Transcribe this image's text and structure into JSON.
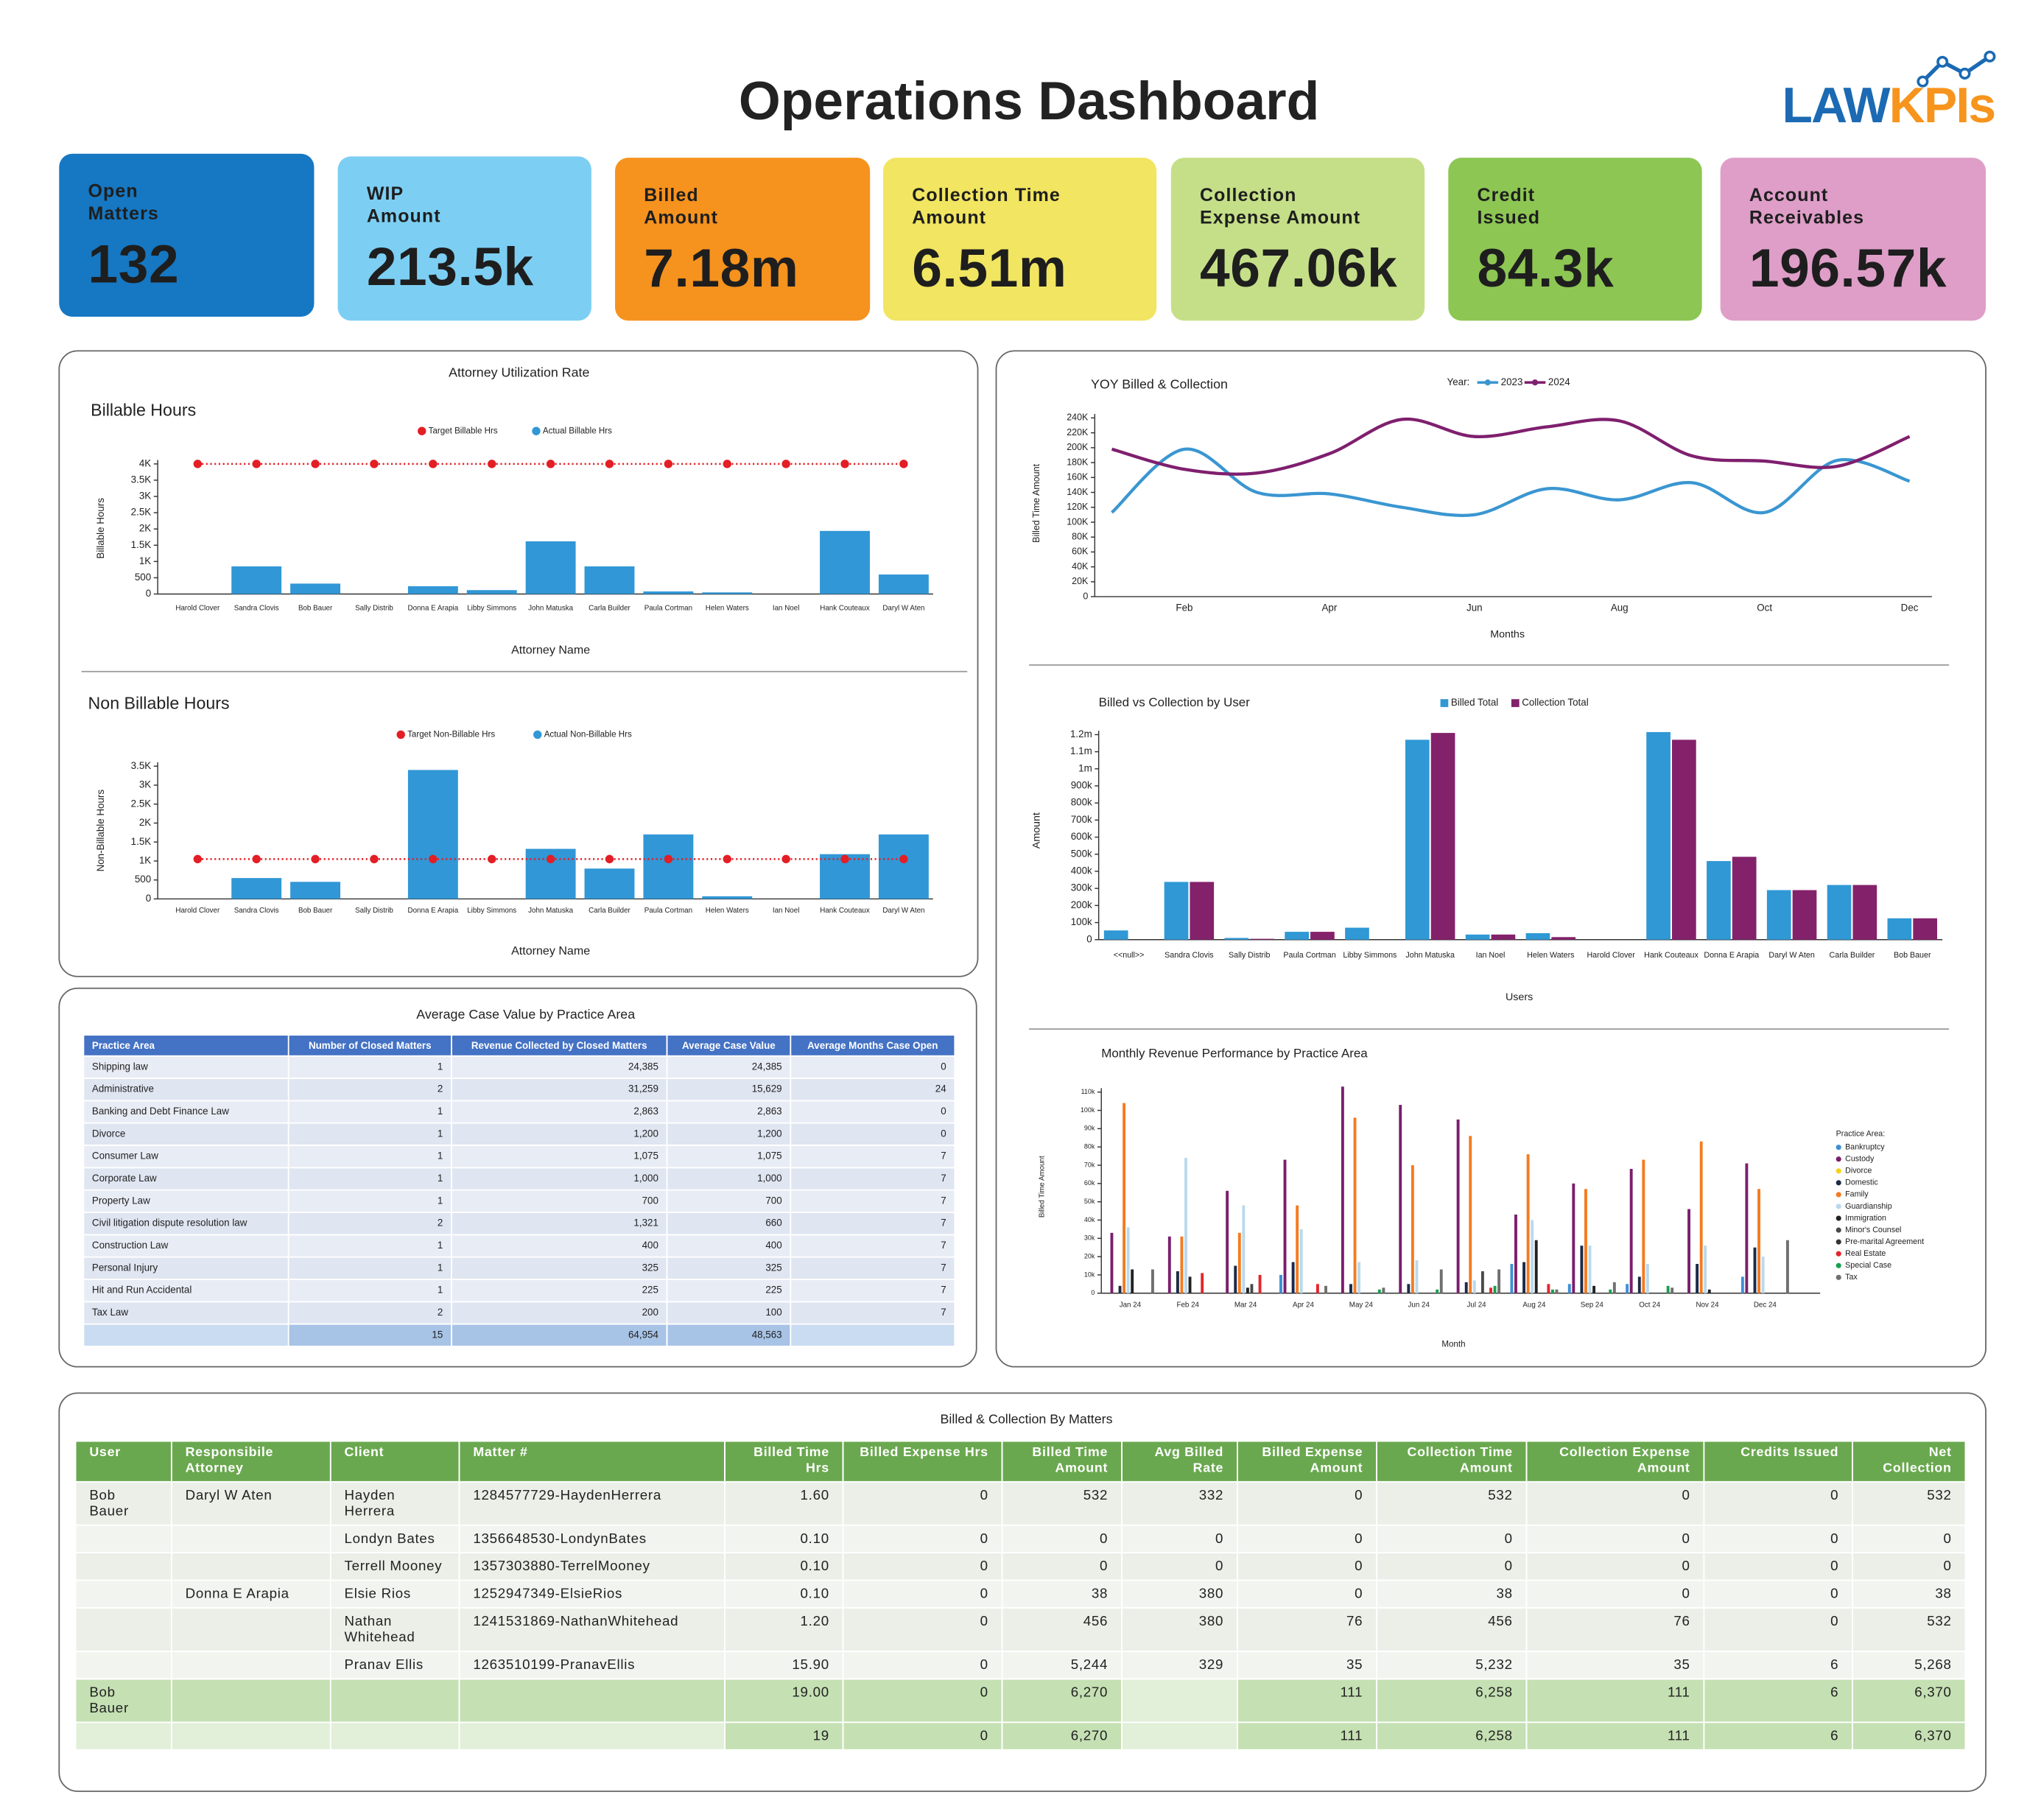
{
  "header": {
    "title": "Operations Dashboard",
    "logo": [
      "LAW",
      "KPIs"
    ]
  },
  "kpis": [
    {
      "label": [
        "Open",
        "Matters"
      ],
      "value": "132",
      "color": "#1677c2"
    },
    {
      "label": [
        "WIP",
        "Amount"
      ],
      "value": "213.5k",
      "color": "#7ccff3"
    },
    {
      "label": [
        "Billed",
        "Amount"
      ],
      "value": "7.18m",
      "color": "#f6921e"
    },
    {
      "label": [
        "Collection Time",
        "Amount"
      ],
      "value": "6.51m",
      "color": "#f1e561"
    },
    {
      "label": [
        "Collection",
        "Expense Amount"
      ],
      "value": "467.06k",
      "color": "#c5df88"
    },
    {
      "label": [
        "Credit",
        "Issued"
      ],
      "value": "84.3k",
      "color": "#8dc653"
    },
    {
      "label": [
        "Account",
        "Receivables"
      ],
      "value": "196.57k",
      "color": "#de9ec8"
    }
  ],
  "panels": {
    "attorney_utilization": "Attorney Utilization Rate"
  },
  "chart_data": [
    {
      "type": "bar",
      "title": "Billable Hours",
      "y_label": "Billable Hours",
      "x_label": "Attorney Name",
      "categories": [
        "Harold Clover",
        "Sandra Clovis",
        "Bob Bauer",
        "Sally Distrib",
        "Donna E Arapia",
        "Libby Simmons",
        "John Matuska",
        "Carla Builder",
        "Paula Cortman",
        "Helen Waters",
        "Ian Noel",
        "Hank Couteaux",
        "Daryl W Aten"
      ],
      "series": [
        {
          "name": "Target Billable Hrs",
          "color": "#e31e24",
          "mark": "dot",
          "values": [
            4000,
            4000,
            4000,
            4000,
            4000,
            4000,
            4000,
            4000,
            4000,
            4000,
            4000,
            4000,
            4000
          ]
        },
        {
          "name": "Actual Billable Hrs",
          "color": "#3197d6",
          "mark": "bar",
          "values": [
            0,
            850,
            320,
            0,
            240,
            120,
            1620,
            850,
            80,
            50,
            0,
            1940,
            600
          ]
        }
      ],
      "ylim": [
        0,
        4000
      ],
      "yticks": [
        0,
        500,
        {
          "value": 1000,
          "label": "1K"
        },
        {
          "value": 1500,
          "label": "1.5K"
        },
        {
          "value": 2000,
          "label": "2K"
        },
        {
          "value": 2500,
          "label": "2.5K"
        },
        {
          "value": 3000,
          "label": "3K"
        },
        {
          "value": 3500,
          "label": "3.5K"
        },
        {
          "value": 4000,
          "label": "4K"
        }
      ],
      "grid": false
    },
    {
      "type": "bar",
      "title": "Non Billable Hours",
      "y_label": "Non-Billable Hours",
      "x_label": "Attorney Name",
      "categories": [
        "Harold Clover",
        "Sandra Clovis",
        "Bob Bauer",
        "Sally Distrib",
        "Donna E Arapia",
        "Libby Simmons",
        "John Matuska",
        "Carla Builder",
        "Paula Cortman",
        "Helen Waters",
        "Ian Noel",
        "Hank Couteaux",
        "Daryl W Aten"
      ],
      "series": [
        {
          "name": "Target Non-Billable Hrs",
          "color": "#e31e24",
          "mark": "dot",
          "values": [
            1050,
            1050,
            1050,
            1050,
            1050,
            1050,
            1050,
            1050,
            1050,
            1050,
            1050,
            1050,
            1050
          ]
        },
        {
          "name": "Actual Non-Billable Hrs",
          "color": "#3197d6",
          "mark": "bar",
          "values": [
            0,
            550,
            450,
            0,
            3400,
            0,
            1320,
            800,
            1700,
            70,
            0,
            1180,
            1700
          ]
        }
      ],
      "ylim": [
        0,
        3500
      ],
      "yticks": [
        0,
        500,
        {
          "value": 1000,
          "label": "1K"
        },
        {
          "value": 1500,
          "label": "1.5K"
        },
        {
          "value": 2000,
          "label": "2K"
        },
        {
          "value": 2500,
          "label": "2.5K"
        },
        {
          "value": 3000,
          "label": "3K"
        },
        {
          "value": 3500,
          "label": "3.5K"
        }
      ],
      "grid": false
    },
    {
      "type": "line",
      "title": "YOY Billed & Collection",
      "y_label": "Billed Time Amount",
      "x_label": "Months",
      "legend_title": "Year:",
      "categories": [
        null,
        "Feb",
        null,
        "Apr",
        null,
        "Jun",
        null,
        "Aug",
        null,
        "Oct",
        null,
        "Dec"
      ],
      "series": [
        {
          "name": "2023",
          "color": "#3a96d1",
          "values": [
            113000,
            198000,
            140000,
            138000,
            120000,
            110000,
            145000,
            130000,
            153000,
            113000,
            183000,
            155000
          ]
        },
        {
          "name": "2024",
          "color": "#7f1f6e",
          "values": [
            198000,
            171000,
            166000,
            192000,
            238000,
            215000,
            228000,
            236000,
            189000,
            182000,
            175000,
            215000
          ]
        }
      ],
      "ylim": [
        0,
        240000
      ],
      "yticks": [
        0,
        {
          "value": 20000,
          "label": "20K"
        },
        {
          "value": 40000,
          "label": "40K"
        },
        {
          "value": 60000,
          "label": "60K"
        },
        {
          "value": 80000,
          "label": "80K"
        },
        {
          "value": 100000,
          "label": "100K"
        },
        {
          "value": 120000,
          "label": "120K"
        },
        {
          "value": 140000,
          "label": "140K"
        },
        {
          "value": 160000,
          "label": "160K"
        },
        {
          "value": 180000,
          "label": "180K"
        },
        {
          "value": 200000,
          "label": "200K"
        },
        {
          "value": 220000,
          "label": "220K"
        },
        {
          "value": 240000,
          "label": "240K"
        }
      ],
      "grid": false
    },
    {
      "type": "bar",
      "title": "Billed vs Collection by User",
      "y_label": "Amount",
      "x_label": "Users",
      "categories": [
        "<<null>>",
        "Sandra Clovis",
        "Sally Distrib",
        "Paula Cortman",
        "Libby Simmons",
        "John Matuska",
        "Ian Noel",
        "Helen Waters",
        "Harold Clover",
        "Hank Couteaux",
        "Donna E Arapia",
        "Daryl W Aten",
        "Carla Builder",
        "Bob Bauer"
      ],
      "series": [
        {
          "name": "Billed Total",
          "color": "#2f98d5",
          "mark": "bar",
          "values": [
            54000,
            338000,
            10000,
            46000,
            70000,
            1170000,
            30000,
            38000,
            0,
            1215000,
            460000,
            290000,
            320000,
            125000
          ]
        },
        {
          "name": "Collection Total",
          "color": "#84216b",
          "mark": "bar",
          "values": [
            0,
            338000,
            5000,
            46000,
            0,
            1210000,
            30000,
            15000,
            0,
            1170000,
            485000,
            290000,
            320000,
            125000
          ]
        }
      ],
      "ylim": [
        0,
        1200000
      ],
      "yticks": [
        0,
        {
          "value": 100000,
          "label": "100k"
        },
        {
          "value": 200000,
          "label": "200k"
        },
        {
          "value": 300000,
          "label": "300k"
        },
        {
          "value": 400000,
          "label": "400k"
        },
        {
          "value": 500000,
          "label": "500k"
        },
        {
          "value": 600000,
          "label": "600k"
        },
        {
          "value": 700000,
          "label": "700k"
        },
        {
          "value": 800000,
          "label": "800k"
        },
        {
          "value": 900000,
          "label": "900k"
        },
        {
          "value": 1000000,
          "label": "1m"
        },
        {
          "value": 1100000,
          "label": "1.1m"
        },
        {
          "value": 1200000,
          "label": "1.2m"
        }
      ],
      "grid": false
    },
    {
      "type": "bar",
      "title": "Monthly Revenue Performance by Practice Area",
      "y_label": "Billed Time Amount",
      "x_label": "Month",
      "legend_title": "Practice Area:",
      "categories": [
        "Jan 24",
        "Feb 24",
        "Mar 24",
        "Apr 24",
        "May 24",
        "Jun 24",
        "Jul 24",
        "Aug 24",
        "Sep 24",
        "Oct 24",
        "Nov 24",
        "Dec 24"
      ],
      "series": [
        {
          "name": "Bankruptcy",
          "color": "#3e8fd6",
          "mark": "bar",
          "values": [
            0,
            0,
            0,
            10000,
            0,
            0,
            0,
            16000,
            5000,
            5000,
            0,
            9000
          ]
        },
        {
          "name": "Custody",
          "color": "#7a1e6c",
          "mark": "bar",
          "values": [
            33000,
            31000,
            56000,
            73000,
            113000,
            103000,
            95000,
            43000,
            60000,
            68000,
            46000,
            71000
          ]
        },
        {
          "name": "Divorce",
          "color": "#f4d21c",
          "mark": "bar",
          "values": [
            0,
            0,
            0,
            0,
            0,
            0,
            0,
            0,
            0,
            0,
            0,
            0
          ]
        },
        {
          "name": "Domestic",
          "color": "#1b2a48",
          "mark": "bar",
          "values": [
            4000,
            12000,
            15000,
            17000,
            5000,
            5000,
            6000,
            17000,
            26000,
            9000,
            16000,
            25000
          ]
        },
        {
          "name": "Family",
          "color": "#f47b20",
          "mark": "bar",
          "values": [
            104000,
            31000,
            33000,
            48000,
            96000,
            70000,
            86000,
            76000,
            57000,
            73000,
            83000,
            57000
          ]
        },
        {
          "name": "Guardianship",
          "color": "#b9d9ee",
          "mark": "bar",
          "values": [
            36000,
            74000,
            48000,
            35000,
            17000,
            18000,
            7000,
            40000,
            26000,
            16000,
            26000,
            20000
          ]
        },
        {
          "name": "Immigration",
          "color": "#222222",
          "mark": "bar",
          "values": [
            13000,
            9000,
            3000,
            0,
            0,
            0,
            0,
            29000,
            4000,
            0,
            2000,
            0
          ]
        },
        {
          "name": "Minor's Counsel",
          "color": "#4a4a4a",
          "mark": "bar",
          "values": [
            0,
            0,
            5000,
            0,
            0,
            0,
            12000,
            0,
            0,
            0,
            0,
            0
          ]
        },
        {
          "name": "Pre-marital Agreement",
          "color": "#333333",
          "mark": "bar",
          "values": [
            0,
            0,
            0,
            0,
            0,
            0,
            0,
            0,
            0,
            0,
            0,
            0
          ]
        },
        {
          "name": "Real Estate",
          "color": "#e4262b",
          "mark": "bar",
          "values": [
            0,
            11000,
            10000,
            5000,
            0,
            0,
            3000,
            5000,
            0,
            0,
            0,
            0
          ]
        },
        {
          "name": "Special Case",
          "color": "#17a04e",
          "mark": "bar",
          "values": [
            0,
            0,
            0,
            0,
            2000,
            2000,
            4000,
            2000,
            2000,
            4000,
            0,
            0
          ]
        },
        {
          "name": "Tax",
          "color": "#6f6f6f",
          "mark": "bar",
          "values": [
            13000,
            0,
            0,
            4000,
            3000,
            13000,
            13000,
            2000,
            6000,
            3000,
            0,
            29000
          ]
        }
      ],
      "ylim": [
        0,
        110000
      ],
      "yticks": [
        0,
        {
          "value": 10000,
          "label": "10k"
        },
        {
          "value": 20000,
          "label": "20k"
        },
        {
          "value": 30000,
          "label": "30k"
        },
        {
          "value": 40000,
          "label": "40k"
        },
        {
          "value": 50000,
          "label": "50k"
        },
        {
          "value": 60000,
          "label": "60k"
        },
        {
          "value": 70000,
          "label": "70k"
        },
        {
          "value": 80000,
          "label": "80k"
        },
        {
          "value": 90000,
          "label": "90k"
        },
        {
          "value": 100000,
          "label": "100k"
        },
        {
          "value": 110000,
          "label": "110k"
        }
      ],
      "grid": false
    }
  ],
  "case_value_table": {
    "title": "Average Case Value by Practice Area",
    "columns": [
      "Practice Area",
      "Number of Closed Matters",
      "Revenue Collected by Closed Matters",
      "Average Case Value",
      "Average Months Case Open"
    ],
    "rows": [
      [
        "Shipping law",
        "1",
        "24,385",
        "24,385",
        "0"
      ],
      [
        "Administrative",
        "2",
        "31,259",
        "15,629",
        "24"
      ],
      [
        "Banking and Debt Finance Law",
        "1",
        "2,863",
        "2,863",
        "0"
      ],
      [
        "Divorce",
        "1",
        "1,200",
        "1,200",
        "0"
      ],
      [
        "Consumer Law",
        "1",
        "1,075",
        "1,075",
        "7"
      ],
      [
        "Corporate Law",
        "1",
        "1,000",
        "1,000",
        "7"
      ],
      [
        "Property Law",
        "1",
        "700",
        "700",
        "7"
      ],
      [
        "Civil litigation dispute resolution law",
        "2",
        "1,321",
        "660",
        "7"
      ],
      [
        "Construction Law",
        "1",
        "400",
        "400",
        "7"
      ],
      [
        "Personal Injury",
        "1",
        "325",
        "325",
        "7"
      ],
      [
        "Hit and Run Accidental",
        "1",
        "225",
        "225",
        "7"
      ],
      [
        "Tax Law",
        "2",
        "200",
        "100",
        "7"
      ]
    ],
    "total": [
      null,
      "15",
      "64,954",
      "48,563",
      null
    ]
  },
  "matters_table": {
    "title": "Billed & Collection By Matters",
    "columns": [
      "User",
      "Responsibile Attorney",
      "Client",
      "Matter #",
      "Billed Time Hrs",
      "Billed Expense Hrs",
      "Billed Time Amount",
      "Avg Billed Rate",
      "Billed Expense Amount",
      "Collection Time Amount",
      "Collection Expense Amount",
      "Credits Issued",
      "Net Collection"
    ],
    "rows": [
      [
        "Bob Bauer",
        "Daryl W Aten",
        "Hayden Herrera",
        "1284577729-HaydenHerrera",
        "1.60",
        "0",
        "532",
        "332",
        "0",
        "532",
        "0",
        "0",
        "532"
      ],
      [
        null,
        null,
        "Londyn Bates",
        "1356648530-LondynBates",
        "0.10",
        "0",
        "0",
        "0",
        "0",
        "0",
        "0",
        "0",
        "0"
      ],
      [
        null,
        null,
        "Terrell Mooney",
        "1357303880-TerrelMooney",
        "0.10",
        "0",
        "0",
        "0",
        "0",
        "0",
        "0",
        "0",
        "0"
      ],
      [
        null,
        "Donna E Arapia",
        "Elsie Rios",
        "1252947349-ElsieRios",
        "0.10",
        "0",
        "38",
        "380",
        "0",
        "38",
        "0",
        "0",
        "38"
      ],
      [
        null,
        null,
        "Nathan Whitehead",
        "1241531869-NathanWhitehead",
        "1.20",
        "0",
        "456",
        "380",
        "76",
        "456",
        "76",
        "0",
        "532"
      ],
      [
        null,
        null,
        "Pranav Ellis",
        "1263510199-PranavEllis",
        "15.90",
        "0",
        "5,244",
        "329",
        "35",
        "5,232",
        "35",
        "6",
        "5,268"
      ],
      [
        "Bob Bauer",
        null,
        null,
        null,
        "19.00",
        "0",
        "6,270",
        null,
        "111",
        "6,258",
        "111",
        "6",
        "6,370"
      ],
      [
        null,
        null,
        null,
        null,
        "19",
        "0",
        "6,270",
        null,
        "111",
        "6,258",
        "111",
        "6",
        "6,370"
      ]
    ]
  }
}
